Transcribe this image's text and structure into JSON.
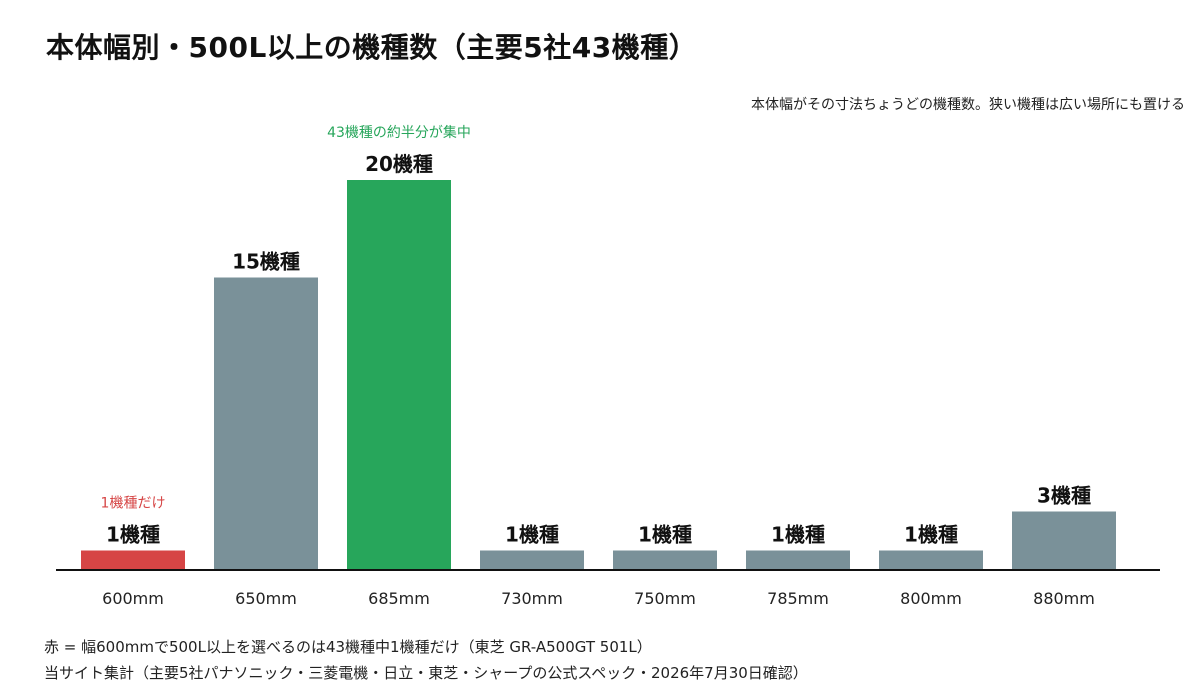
{
  "title": "本体幅別・500L以上の機種数（主要5社43機種）",
  "subtitle": "本体幅がその寸法ちょうどの機種数。狭い機種は広い場所にも置ける",
  "footnotes": [
    "赤 = 幅600mmで500L以上を選べるのは43機種中1機種だけ（東芝 GR-A500GT 501L）",
    "当サイト集計（主要5社パナソニック・三菱電機・日立・東芝・シャープの公式スペック・2026年7月30日確認）"
  ],
  "colors": {
    "default_bar": "#7a9199",
    "highlight_red": "#d64545",
    "highlight_green": "#27a65b",
    "axis": "#111111"
  },
  "chart_data": {
    "type": "bar",
    "categories": [
      "600mm",
      "650mm",
      "685mm",
      "730mm",
      "750mm",
      "785mm",
      "800mm",
      "880mm"
    ],
    "values": [
      1,
      15,
      20,
      1,
      1,
      1,
      1,
      3
    ],
    "value_labels": [
      "1機種",
      "15機種",
      "20機種",
      "1機種",
      "1機種",
      "1機種",
      "1機種",
      "3機種"
    ],
    "bar_colors": [
      "#d64545",
      "#7a9199",
      "#27a65b",
      "#7a9199",
      "#7a9199",
      "#7a9199",
      "#7a9199",
      "#7a9199"
    ],
    "annotations": [
      {
        "category": "600mm",
        "text": "1機種だけ",
        "color": "#d64545"
      },
      {
        "category": "685mm",
        "text": "43機種の約半分が集中",
        "color": "#27a65b"
      }
    ],
    "ylim": [
      0,
      20
    ],
    "grid": false,
    "legend": "none"
  }
}
